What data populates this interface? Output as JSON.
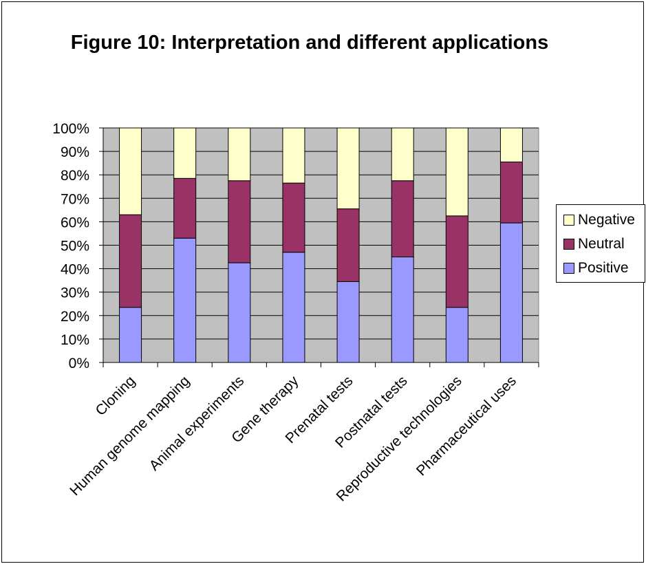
{
  "chart_data": {
    "type": "bar",
    "stacked": true,
    "percent": true,
    "title": "Figure 10: Interpretation and different applications",
    "categories": [
      "Cloning",
      "Human genome mapping",
      "Animal experiments",
      "Gene therapy",
      "Prenatal tests",
      "Postnatal tests",
      "Reproductive technologies",
      "Pharmaceutical uses"
    ],
    "series": [
      {
        "name": "Positive",
        "color": "#9999ff",
        "values": [
          23.5,
          53,
          42.5,
          47,
          34.5,
          45,
          23.5,
          59.5
        ]
      },
      {
        "name": "Neutral",
        "color": "#993366",
        "values": [
          39.5,
          25.5,
          35,
          29.5,
          31,
          32.5,
          39,
          26
        ]
      },
      {
        "name": "Negative",
        "color": "#ffffcc",
        "values": [
          37,
          21.5,
          22.5,
          23.5,
          34.5,
          22.5,
          37.5,
          14.5
        ]
      }
    ],
    "ylim": [
      0,
      100
    ],
    "yticks": [
      "0%",
      "10%",
      "20%",
      "30%",
      "40%",
      "50%",
      "60%",
      "70%",
      "80%",
      "90%",
      "100%"
    ],
    "grid": true,
    "legend": "right",
    "plot_background": "#c0c0c0"
  }
}
